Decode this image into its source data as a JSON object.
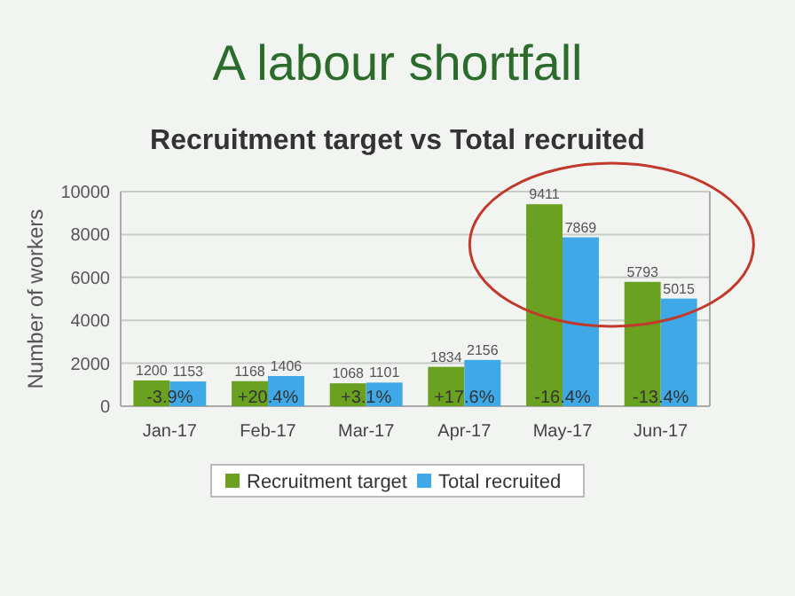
{
  "chart_data": {
    "type": "bar",
    "title": "A labour shortfall",
    "subtitle": "Recruitment target vs Total recruited",
    "ylabel": "Number of workers",
    "categories": [
      "Jan-17",
      "Feb-17",
      "Mar-17",
      "Apr-17",
      "May-17",
      "Jun-17"
    ],
    "series": [
      {
        "name": "Recruitment target",
        "color": "#6aa121",
        "values": [
          1200,
          1168,
          1068,
          1834,
          9411,
          5793
        ]
      },
      {
        "name": "Total recruited",
        "color": "#3ea9e6",
        "values": [
          1153,
          1406,
          1101,
          2156,
          7869,
          5015
        ]
      }
    ],
    "ylim": [
      0,
      10000
    ],
    "yticks": [
      0,
      2000,
      4000,
      6000,
      8000,
      10000
    ],
    "grid": "y",
    "legend": "bottom",
    "data_labels": true,
    "annotations": [
      {
        "text": "-3.9%",
        "x": "Jan-17",
        "y": 500
      },
      {
        "text": "+20.4%",
        "x": "Feb-17",
        "y": 500
      },
      {
        "text": "+3.1%",
        "x": "Mar-17",
        "y": 500
      },
      {
        "text": "+17.6%",
        "x": "Apr-17",
        "y": 500
      },
      {
        "text": "-16.4%",
        "x": "May-17",
        "y": 500
      },
      {
        "text": "-13.4%",
        "x": "Jun-17",
        "y": 500
      }
    ]
  }
}
